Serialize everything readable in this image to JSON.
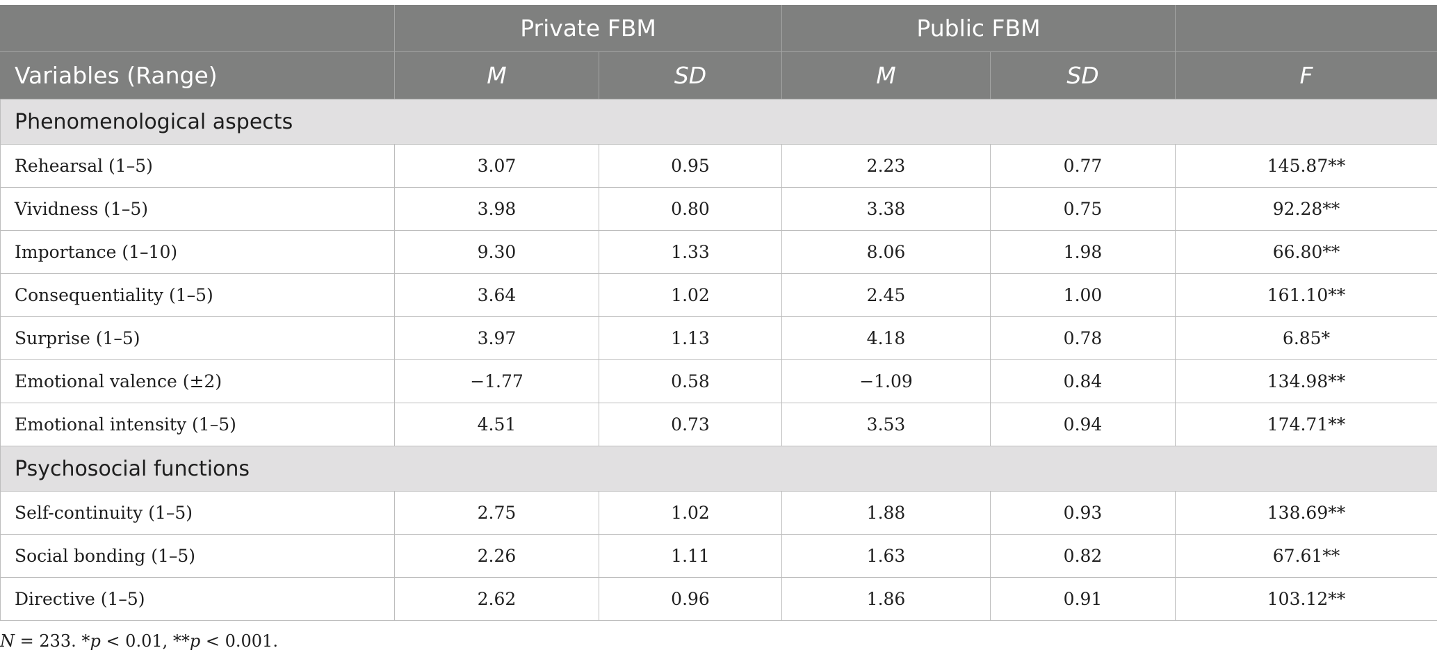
{
  "table": {
    "group_headers": [
      "",
      "Private FBM",
      "Public FBM",
      ""
    ],
    "column_headers": [
      "Variables (Range)",
      "M",
      "SD",
      "M",
      "SD",
      "F"
    ],
    "sections": [
      {
        "title": "Phenomenological aspects",
        "rows": [
          [
            "Rehearsal (1–5)",
            "3.07",
            "0.95",
            "2.23",
            "0.77",
            "145.87**"
          ],
          [
            "Vividness (1–5)",
            "3.98",
            "0.80",
            "3.38",
            "0.75",
            "92.28**"
          ],
          [
            "Importance (1–10)",
            "9.30",
            "1.33",
            "8.06",
            "1.98",
            "66.80**"
          ],
          [
            "Consequentiality (1–5)",
            "3.64",
            "1.02",
            "2.45",
            "1.00",
            "161.10**"
          ],
          [
            "Surprise (1–5)",
            "3.97",
            "1.13",
            "4.18",
            "0.78",
            "6.85*"
          ],
          [
            "Emotional valence (±2)",
            "−1.77",
            "0.58",
            "−1.09",
            "0.84",
            "134.98**"
          ],
          [
            "Emotional intensity (1–5)",
            "4.51",
            "0.73",
            "3.53",
            "0.94",
            "174.71**"
          ]
        ]
      },
      {
        "title": "Psychosocial functions",
        "rows": [
          [
            "Self-continuity (1–5)",
            "2.75",
            "1.02",
            "1.88",
            "0.93",
            "138.69**"
          ],
          [
            "Social bonding (1–5)",
            "2.26",
            "1.11",
            "1.63",
            "0.82",
            "67.61**"
          ],
          [
            "Directive (1–5)",
            "2.62",
            "0.96",
            "1.86",
            "0.91",
            "103.12**"
          ]
        ]
      }
    ]
  },
  "footnote": {
    "n_label": "N",
    "n_value": " = 233. *",
    "p1_label": "p",
    "p1_value": " < 0.01, **",
    "p2_label": "p",
    "p2_value": " < 0.001."
  }
}
